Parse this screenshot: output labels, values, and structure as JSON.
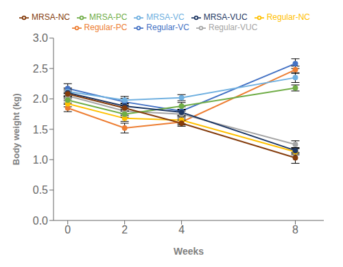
{
  "chart_data": {
    "type": "line",
    "xlabel": "Weeks",
    "ylabel": "Body weight (kg)",
    "x": [
      0,
      2,
      4,
      8
    ],
    "series": [
      {
        "name": "Regular-VC",
        "color": "#4472C4",
        "values": [
          2.17,
          1.95,
          1.8,
          2.58
        ],
        "errors": [
          0.08,
          0.06,
          0.07,
          0.08
        ]
      },
      {
        "name": "Regular-PC",
        "color": "#ED7D31",
        "values": [
          1.85,
          1.52,
          1.62,
          2.48
        ],
        "errors": [
          0.06,
          0.08,
          0.05,
          0.06
        ]
      },
      {
        "name": "Regular-VUC",
        "color": "#A5A5A5",
        "values": [
          2.05,
          1.8,
          1.75,
          1.25
        ],
        "errors": [
          0.05,
          0.05,
          0.05,
          0.06
        ]
      },
      {
        "name": "Regular-NC",
        "color": "#FFC000",
        "values": [
          1.92,
          1.68,
          1.65,
          1.13
        ],
        "errors": [
          0.05,
          0.05,
          0.06,
          0.05
        ]
      },
      {
        "name": "MRSA-VC",
        "color": "#70B0E0",
        "values": [
          2.12,
          1.98,
          2.02,
          2.35
        ],
        "errors": [
          0.06,
          0.06,
          0.05,
          0.08
        ]
      },
      {
        "name": "MRSA-PC",
        "color": "#70AD47",
        "values": [
          1.98,
          1.75,
          1.88,
          2.18
        ],
        "errors": [
          0.05,
          0.05,
          0.06,
          0.05
        ]
      },
      {
        "name": "MRSA-VUC",
        "color": "#1F3864",
        "values": [
          2.1,
          1.88,
          1.78,
          1.15
        ],
        "errors": [
          0.06,
          0.05,
          0.05,
          0.05
        ]
      },
      {
        "name": "MRSA-NC",
        "color": "#843C0C",
        "values": [
          2.08,
          1.85,
          1.6,
          1.03
        ],
        "errors": [
          0.05,
          0.05,
          0.05,
          0.09
        ]
      }
    ],
    "xlim": [
      -0.5,
      9.0
    ],
    "xticks": [
      0,
      2,
      4,
      8
    ],
    "ylim": [
      0,
      3.0
    ],
    "yticks": [
      {
        "value": 0,
        "label": "0.0"
      },
      0.5,
      {
        "value": 1.0,
        "label": "1.0"
      },
      1.5,
      {
        "value": 2.0,
        "label": "2.0"
      },
      2.5,
      {
        "value": 3.0,
        "label": "3.0"
      }
    ],
    "marker": "o",
    "legend": "top",
    "grid": false
  }
}
